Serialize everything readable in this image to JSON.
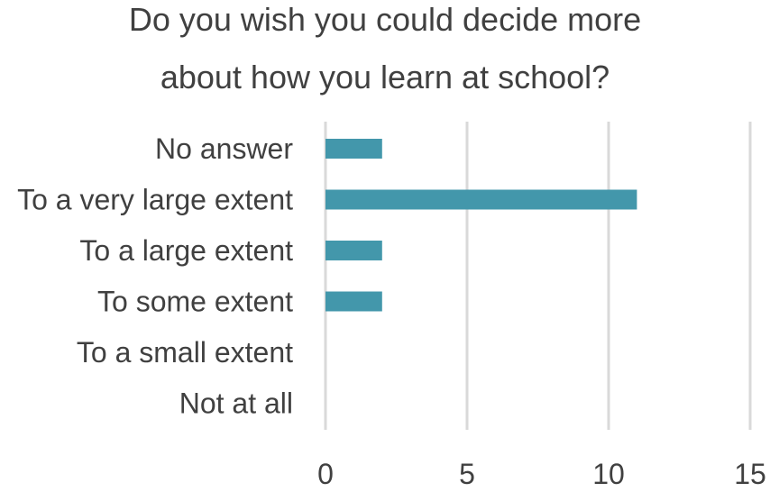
{
  "chart_data": {
    "type": "bar",
    "orientation": "horizontal",
    "title_lines": [
      "Do you wish you could decide more",
      "about how you learn at school?"
    ],
    "categories": [
      "No answer",
      "To a very large extent",
      "To a large extent",
      "To some extent",
      "To a small extent",
      "Not at all"
    ],
    "values": [
      2,
      11,
      2,
      2,
      0,
      0
    ],
    "xlabel": "",
    "ylabel": "",
    "xlim": [
      0,
      15
    ],
    "xticks": [
      0,
      5,
      10,
      15
    ],
    "grid": true,
    "bar_color": "#4397AB",
    "grid_color": "#D9D9D9"
  }
}
